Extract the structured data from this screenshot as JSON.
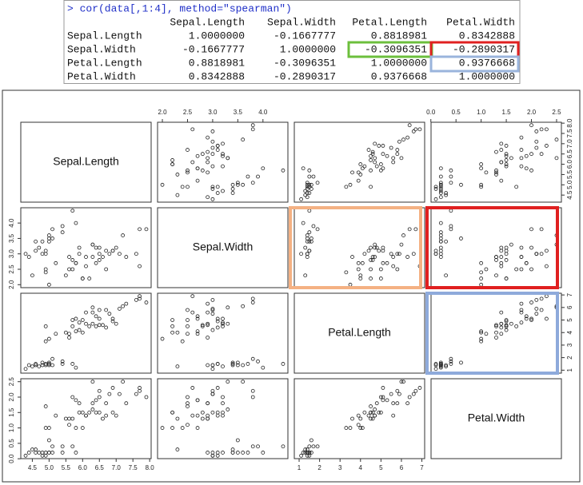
{
  "console": {
    "command": "> cor(data[,1:4], method=\"spearman\")",
    "columns": [
      "Sepal.Length",
      "Sepal.Width",
      "Petal.Length",
      "Petal.Width"
    ],
    "rows": [
      {
        "label": "Sepal.Length",
        "values": [
          "1.0000000",
          "-0.1667777",
          "0.8818981",
          "0.8342888"
        ]
      },
      {
        "label": "Sepal.Width",
        "values": [
          "-0.1667777",
          "1.0000000",
          "-0.3096351",
          "-0.2890317"
        ]
      },
      {
        "label": "Petal.Length",
        "values": [
          "0.8818981",
          "-0.3096351",
          "1.0000000",
          "0.9376668"
        ]
      },
      {
        "label": "Petal.Width",
        "values": [
          "0.8342888",
          "-0.2890317",
          "0.9376668",
          "1.0000000"
        ]
      }
    ]
  },
  "chart_data": {
    "type": "scatter_matrix",
    "point_color": "#222",
    "variables": [
      {
        "name": "Sepal.Length",
        "lim": [
          4.156,
          8.044
        ],
        "ticks": [
          4.5,
          {
            "value": 5,
            "label": "5.0"
          },
          5.5,
          {
            "value": 6,
            "label": "6.0"
          },
          6.5,
          {
            "value": 7,
            "label": "7.0"
          },
          7.5,
          {
            "value": 8,
            "label": "8.0"
          }
        ],
        "values": [
          5.1,
          4.9,
          4.7,
          4.6,
          5.0,
          5.4,
          4.6,
          5.0,
          4.4,
          4.9,
          5.4,
          4.8,
          4.8,
          4.3,
          5.8,
          5.7,
          4.5,
          5.0,
          5.1,
          7.0,
          6.4,
          6.9,
          5.5,
          6.5,
          5.7,
          6.3,
          4.9,
          6.6,
          5.2,
          5.0,
          5.9,
          6.0,
          6.1,
          5.6,
          6.7,
          5.8,
          6.2,
          5.6,
          5.9,
          6.3,
          5.8,
          7.1,
          6.3,
          6.5,
          7.6,
          4.9,
          7.3,
          6.7,
          7.2,
          6.5,
          6.4,
          6.8,
          5.7,
          7.7,
          7.7,
          6.0,
          7.9,
          6.1,
          6.9
        ]
      },
      {
        "name": "Sepal.Width",
        "lim": [
          1.904,
          4.496
        ],
        "ticks": [
          {
            "value": 2,
            "label": "2.0"
          },
          2.5,
          {
            "value": 3,
            "label": "3.0"
          },
          3.5,
          {
            "value": 4,
            "label": "4.0"
          }
        ],
        "values": [
          3.5,
          3.0,
          3.2,
          3.1,
          3.6,
          3.9,
          3.4,
          3.4,
          2.9,
          3.1,
          3.7,
          3.4,
          3.0,
          3.0,
          4.0,
          4.4,
          2.3,
          3.5,
          3.8,
          3.2,
          3.2,
          3.1,
          2.3,
          2.8,
          2.8,
          3.3,
          2.4,
          2.9,
          2.7,
          2.0,
          3.0,
          2.2,
          2.9,
          2.9,
          3.1,
          2.7,
          2.2,
          2.5,
          3.2,
          3.3,
          2.7,
          3.0,
          2.9,
          3.0,
          3.0,
          2.5,
          2.9,
          2.5,
          3.6,
          3.2,
          2.7,
          3.0,
          2.5,
          3.8,
          2.6,
          2.2,
          3.8,
          2.6,
          3.1
        ]
      },
      {
        "name": "Petal.Length",
        "lim": [
          0.764,
          7.136
        ],
        "ticks": [
          1,
          2,
          3,
          4,
          5,
          6,
          7
        ],
        "values": [
          1.4,
          1.4,
          1.3,
          1.5,
          1.4,
          1.7,
          1.4,
          1.5,
          1.4,
          1.5,
          1.5,
          1.6,
          1.4,
          1.1,
          1.2,
          1.5,
          1.3,
          1.6,
          1.9,
          4.7,
          4.5,
          4.9,
          4.0,
          4.6,
          4.5,
          4.7,
          3.3,
          4.6,
          3.9,
          3.5,
          4.2,
          4.0,
          4.7,
          3.6,
          4.4,
          4.1,
          4.5,
          3.9,
          4.8,
          6.0,
          5.1,
          5.9,
          5.6,
          5.8,
          6.6,
          4.5,
          6.3,
          5.8,
          6.1,
          5.1,
          5.3,
          5.5,
          5.0,
          6.7,
          6.9,
          5.0,
          6.4,
          5.6,
          5.1
        ]
      },
      {
        "name": "Petal.Width",
        "lim": [
          0.004,
          2.596
        ],
        "ticks": [
          {
            "value": 0,
            "label": "0.0"
          },
          0.5,
          {
            "value": 1,
            "label": "1.0"
          },
          1.5,
          {
            "value": 2,
            "label": "2.0"
          },
          2.5
        ],
        "values": [
          0.2,
          0.2,
          0.2,
          0.2,
          0.2,
          0.4,
          0.3,
          0.2,
          0.2,
          0.1,
          0.2,
          0.2,
          0.1,
          0.1,
          0.2,
          0.4,
          0.3,
          0.6,
          0.4,
          1.4,
          1.5,
          1.5,
          1.3,
          1.5,
          1.3,
          1.6,
          1.0,
          1.3,
          1.4,
          1.0,
          1.5,
          1.0,
          1.4,
          1.3,
          1.4,
          1.0,
          1.5,
          1.1,
          1.8,
          2.5,
          1.9,
          2.1,
          1.8,
          2.2,
          2.1,
          1.7,
          1.8,
          1.8,
          2.5,
          2.0,
          1.9,
          2.1,
          2.0,
          2.2,
          2.3,
          1.5,
          2.0,
          1.4,
          2.3
        ]
      }
    ]
  }
}
